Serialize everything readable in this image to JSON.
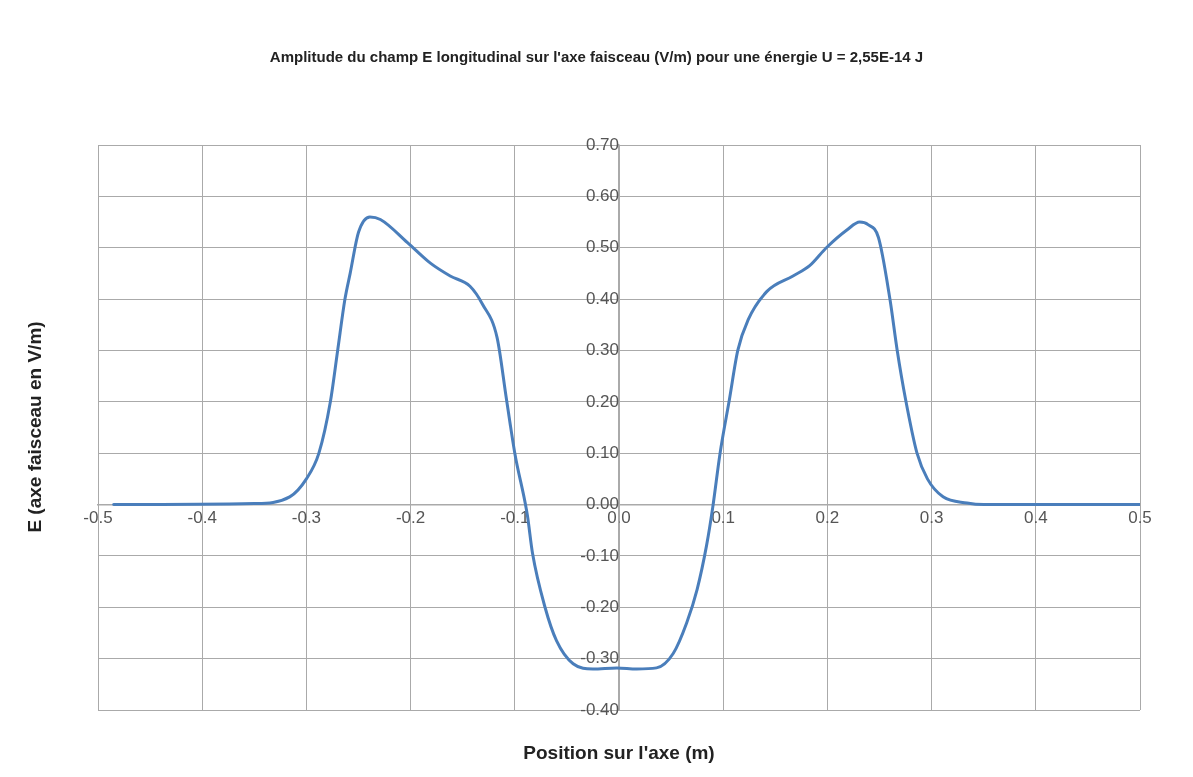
{
  "chart_data": {
    "type": "line",
    "title": "Amplitude du champ E longitudinal sur l'axe faisceau (V/m) pour une énergie U = 2,55E-14 J",
    "xlabel": "Position sur l'axe (m)",
    "ylabel": "E (axe faisceau en V/m)",
    "x": [
      -0.485,
      -0.35,
      -0.316,
      -0.3,
      -0.288,
      -0.277,
      -0.27,
      -0.263,
      -0.258,
      -0.25,
      -0.239,
      -0.229,
      -0.203,
      -0.181,
      -0.162,
      -0.143,
      -0.131,
      -0.117,
      -0.108,
      -0.1,
      -0.088,
      -0.083,
      -0.071,
      -0.06,
      -0.044,
      -0.025,
      -0.002,
      0.017,
      0.036,
      0.052,
      0.065,
      0.075,
      0.084,
      0.09,
      0.097,
      0.106,
      0.114,
      0.124,
      0.142,
      0.167,
      0.183,
      0.199,
      0.219,
      0.231,
      0.239,
      0.249,
      0.26,
      0.267,
      0.275,
      0.286,
      0.296,
      0.311,
      0.334,
      0.35,
      0.5
    ],
    "series": [
      {
        "color": "#4a7ebb",
        "values": [
          0,
          0.002,
          0.015,
          0.05,
          0.1,
          0.2,
          0.3,
          0.4,
          0.45,
          0.53,
          0.56,
          0.555,
          0.51,
          0.47,
          0.445,
          0.425,
          0.39,
          0.325,
          0.205,
          0.1,
          -0.02,
          -0.095,
          -0.2,
          -0.265,
          -0.31,
          -0.32,
          -0.318,
          -0.32,
          -0.318,
          -0.29,
          -0.23,
          -0.165,
          -0.08,
          -0.005,
          0.1,
          0.205,
          0.3,
          0.36,
          0.415,
          0.445,
          0.465,
          0.5,
          0.535,
          0.55,
          0.545,
          0.52,
          0.4,
          0.3,
          0.205,
          0.1,
          0.05,
          0.015,
          0.003,
          0,
          0
        ]
      }
    ],
    "xlim": [
      -0.5,
      0.5
    ],
    "xticks": [
      {
        "value": -0.5,
        "label": "-0.5"
      },
      {
        "value": -0.4,
        "label": "-0.4"
      },
      {
        "value": -0.3,
        "label": "-0.3"
      },
      {
        "value": -0.2,
        "label": "-0.2"
      },
      {
        "value": -0.1,
        "label": "-0.1"
      },
      {
        "value": 0,
        "label": "0.0"
      },
      {
        "value": 0.1,
        "label": "0.1"
      },
      {
        "value": 0.2,
        "label": "0.2"
      },
      {
        "value": 0.3,
        "label": "0.3"
      },
      {
        "value": 0.4,
        "label": "0.4"
      },
      {
        "value": 0.5,
        "label": "0.5"
      }
    ],
    "ylim": [
      -0.4,
      0.7
    ],
    "yticks": [
      {
        "value": -0.4,
        "label": "-0.40"
      },
      {
        "value": -0.3,
        "label": "-0.30"
      },
      {
        "value": -0.2,
        "label": "-0.20"
      },
      {
        "value": -0.1,
        "label": "-0.10"
      },
      {
        "value": 0,
        "label": "0.00"
      },
      {
        "value": 0.1,
        "label": "0.10"
      },
      {
        "value": 0.2,
        "label": "0.20"
      },
      {
        "value": 0.3,
        "label": "0.30"
      },
      {
        "value": 0.4,
        "label": "0.40"
      },
      {
        "value": 0.5,
        "label": "0.50"
      },
      {
        "value": 0.6,
        "label": "0.60"
      },
      {
        "value": 0.7,
        "label": "0.70"
      }
    ],
    "grid": true,
    "marker": "none",
    "line_style": "solid"
  }
}
